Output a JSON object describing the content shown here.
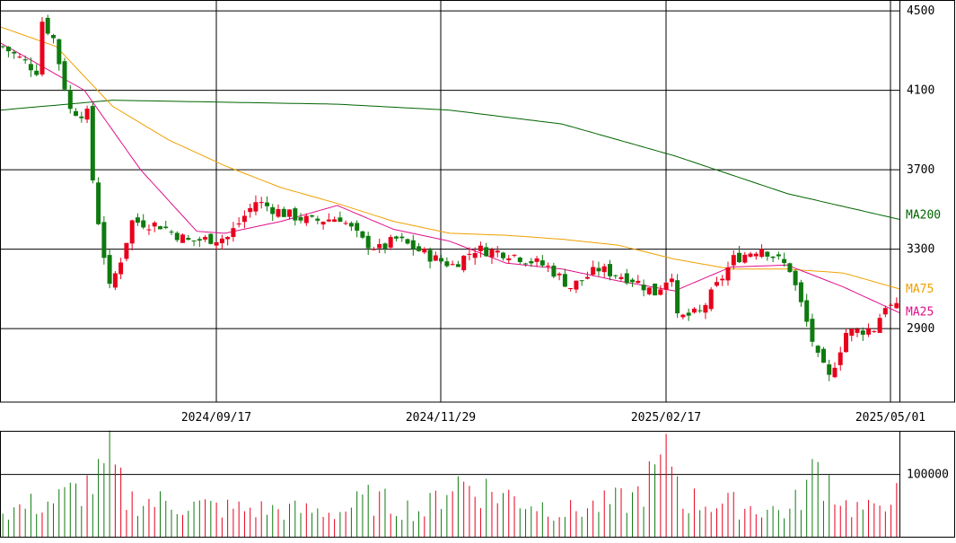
{
  "chart_data": {
    "type": "candlestick",
    "price_axis": {
      "ticks": [
        2900,
        3300,
        3700,
        4100,
        4500
      ],
      "tick_labels": [
        "2900",
        "3300",
        "3700",
        "4100",
        "4500"
      ],
      "range": [
        2530,
        4550
      ]
    },
    "date_axis": {
      "labels": [
        "2024/09/17",
        "2024/11/29",
        "2025/02/17",
        "2025/05/01"
      ]
    },
    "volume_axis": {
      "ticks": [
        100000
      ],
      "tick_labels": [
        "100000"
      ],
      "range": [
        0,
        170000
      ]
    },
    "legend": [
      {
        "label": "MA200",
        "color": "#006400"
      },
      {
        "label": "MA75",
        "color": "#f0a000"
      },
      {
        "label": "MA25",
        "color": "#e0108a"
      }
    ],
    "colors": {
      "up": "#e8001c",
      "down": "#0f7a0f",
      "grid": "#000000",
      "ma200": "#006400",
      "ma75": "#f0a000",
      "ma25": "#e0108a"
    },
    "sessions": 160,
    "date_label_session_index": [
      40,
      80,
      120,
      160
    ],
    "ma200": [
      [
        0,
        4000
      ],
      [
        20,
        4050
      ],
      [
        40,
        4040
      ],
      [
        60,
        4030
      ],
      [
        80,
        4000
      ],
      [
        100,
        3930
      ],
      [
        120,
        3770
      ],
      [
        140,
        3580
      ],
      [
        160,
        3450
      ]
    ],
    "ma75": [
      [
        0,
        4420
      ],
      [
        10,
        4320
      ],
      [
        20,
        4020
      ],
      [
        30,
        3850
      ],
      [
        40,
        3720
      ],
      [
        50,
        3610
      ],
      [
        60,
        3530
      ],
      [
        70,
        3440
      ],
      [
        80,
        3380
      ],
      [
        90,
        3370
      ],
      [
        100,
        3350
      ],
      [
        110,
        3320
      ],
      [
        120,
        3250
      ],
      [
        130,
        3200
      ],
      [
        140,
        3200
      ],
      [
        150,
        3180
      ],
      [
        160,
        3100
      ]
    ],
    "ma25": [
      [
        0,
        4340
      ],
      [
        15,
        4100
      ],
      [
        25,
        3700
      ],
      [
        35,
        3390
      ],
      [
        40,
        3380
      ],
      [
        50,
        3440
      ],
      [
        60,
        3520
      ],
      [
        70,
        3400
      ],
      [
        80,
        3340
      ],
      [
        90,
        3230
      ],
      [
        100,
        3200
      ],
      [
        110,
        3140
      ],
      [
        120,
        3090
      ],
      [
        130,
        3210
      ],
      [
        140,
        3220
      ],
      [
        150,
        3110
      ],
      [
        160,
        2980
      ]
    ],
    "close_path": [
      [
        0,
        4320
      ],
      [
        6,
        4200
      ],
      [
        7,
        4450
      ],
      [
        9,
        4360
      ],
      [
        12,
        4000
      ],
      [
        15,
        3980
      ],
      [
        16,
        3650
      ],
      [
        17,
        3440
      ],
      [
        19,
        3100
      ],
      [
        21,
        3250
      ],
      [
        23,
        3440
      ],
      [
        28,
        3420
      ],
      [
        33,
        3340
      ],
      [
        40,
        3360
      ],
      [
        45,
        3540
      ],
      [
        50,
        3480
      ],
      [
        55,
        3440
      ],
      [
        60,
        3460
      ],
      [
        64,
        3340
      ],
      [
        67,
        3300
      ],
      [
        70,
        3350
      ],
      [
        77,
        3250
      ],
      [
        80,
        3220
      ],
      [
        84,
        3300
      ],
      [
        90,
        3280
      ],
      [
        97,
        3210
      ],
      [
        101,
        3110
      ],
      [
        106,
        3200
      ],
      [
        112,
        3150
      ],
      [
        116,
        3080
      ],
      [
        119,
        3180
      ],
      [
        120,
        2950
      ],
      [
        124,
        2980
      ],
      [
        130,
        3250
      ],
      [
        135,
        3310
      ],
      [
        140,
        3200
      ],
      [
        145,
        2750
      ],
      [
        147,
        2650
      ],
      [
        150,
        2880
      ],
      [
        155,
        2900
      ],
      [
        157,
        3020
      ],
      [
        160,
        2990
      ]
    ],
    "volume_path": [
      [
        0,
        40000
      ],
      [
        10,
        60000
      ],
      [
        17,
        90000
      ],
      [
        19,
        120000
      ],
      [
        22,
        60000
      ],
      [
        40,
        45000
      ],
      [
        60,
        40000
      ],
      [
        65,
        60000
      ],
      [
        75,
        40000
      ],
      [
        80,
        90000
      ],
      [
        100,
        40000
      ],
      [
        112,
        60000
      ],
      [
        119,
        130000
      ],
      [
        121,
        60000
      ],
      [
        140,
        40000
      ],
      [
        145,
        110000
      ],
      [
        147,
        90000
      ],
      [
        150,
        50000
      ],
      [
        155,
        40000
      ],
      [
        158,
        80000
      ],
      [
        160,
        45000
      ]
    ]
  }
}
